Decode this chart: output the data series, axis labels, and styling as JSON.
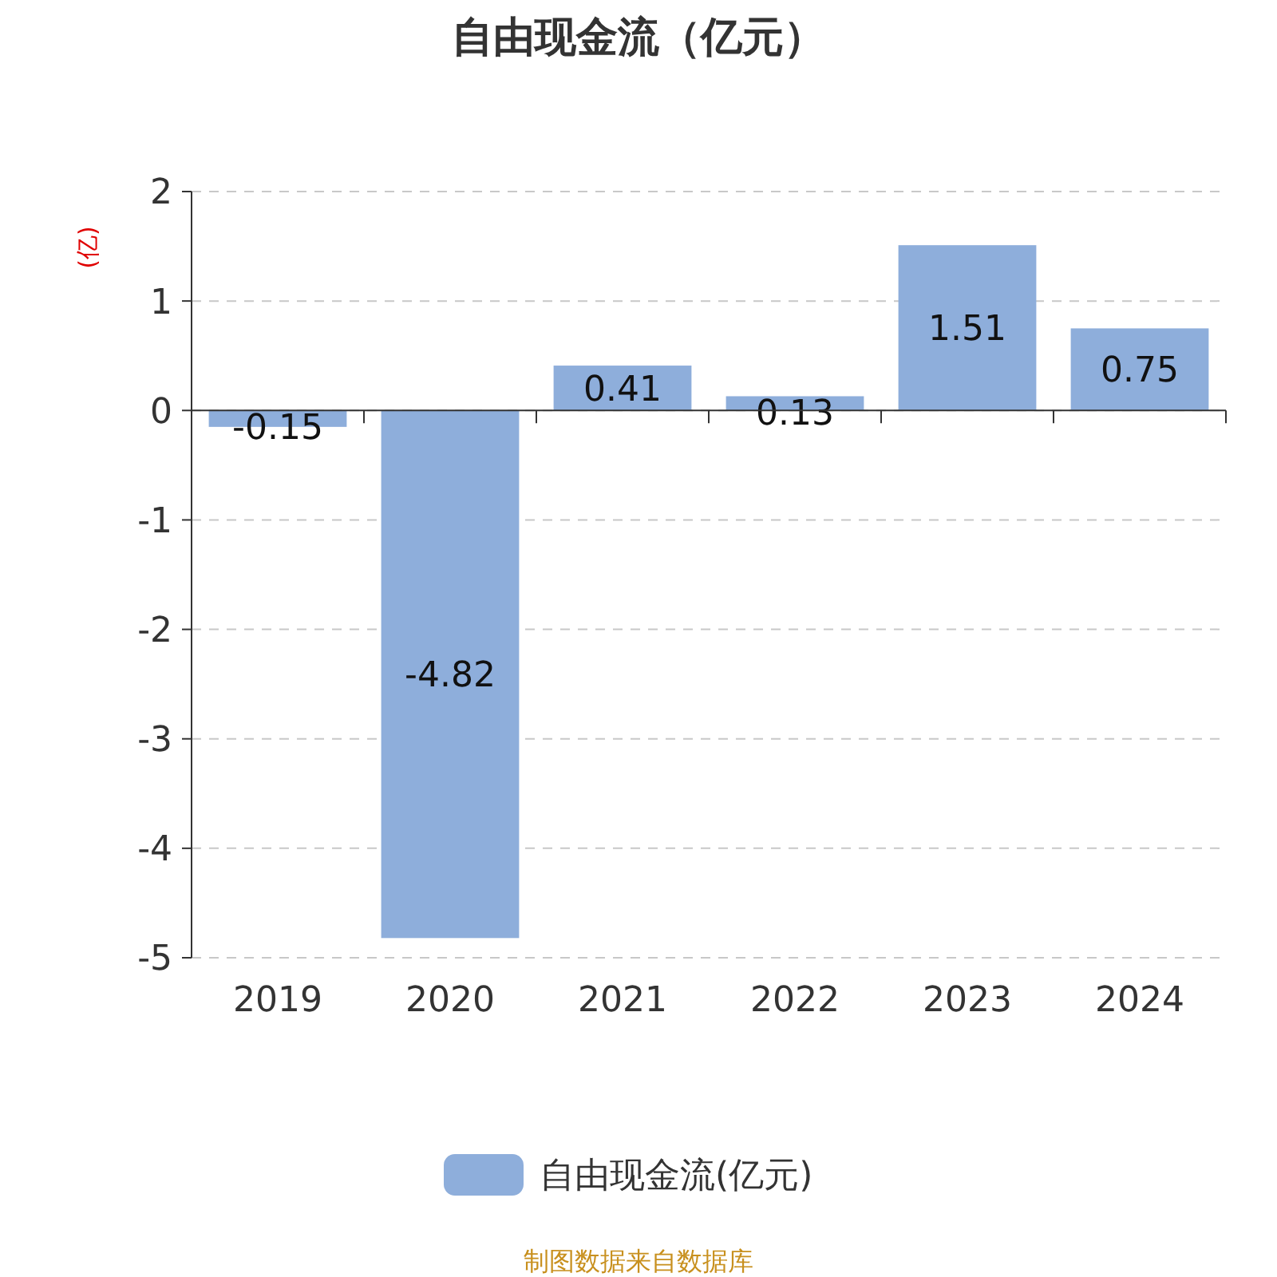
{
  "chart_data": {
    "type": "bar",
    "title": "自由现金流（亿元）",
    "ylabel": "(亿)",
    "categories": [
      "2019",
      "2020",
      "2021",
      "2022",
      "2023",
      "2024"
    ],
    "series": [
      {
        "name": "自由现金流(亿元)",
        "color": "#8eaedb",
        "values": [
          -0.15,
          -4.82,
          0.41,
          0.13,
          1.51,
          0.75
        ]
      }
    ],
    "ylim": [
      -5,
      2
    ],
    "yticks": [
      -5,
      -4,
      -3,
      -2,
      -1,
      0,
      1,
      2
    ],
    "grid": "y",
    "legend": "bottom",
    "data_labels": true,
    "annotations": [
      "制图数据来自数据库"
    ]
  }
}
